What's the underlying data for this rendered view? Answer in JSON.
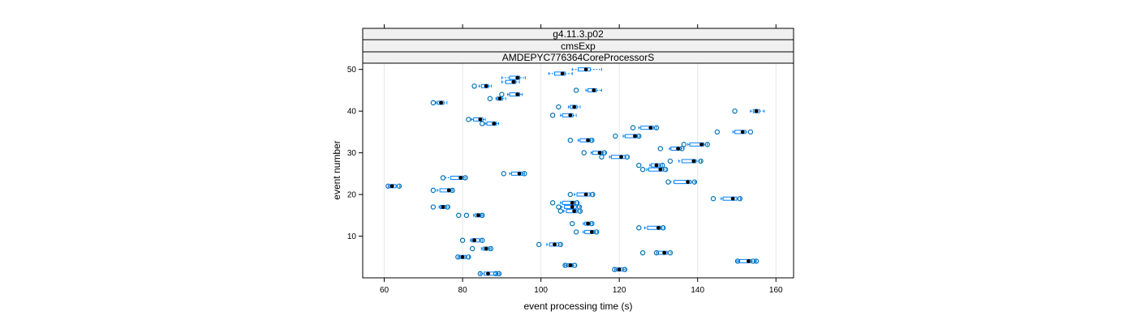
{
  "chart_data": {
    "type": "scatter",
    "subtype": "lattice-box-and-whisker",
    "strips": [
      "g4.11.3.p02",
      "cmsExp",
      "AMDEPYC776364CoreProcessorS"
    ],
    "xlabel": "event processing time (s)",
    "ylabel": "event number",
    "xlim": [
      54.5,
      164.5
    ],
    "ylim": [
      0,
      51.5
    ],
    "xticks": [
      60,
      80,
      100,
      120,
      140,
      160
    ],
    "yticks": [
      10,
      20,
      30,
      40,
      50
    ],
    "grid": true,
    "colors": {
      "box": "#0080ff",
      "point": "#0072b2",
      "median": "#000000",
      "strip": "#f0f0f0",
      "grid": "#e6e6e6"
    },
    "series": [
      {
        "event": 1,
        "median": 86.5,
        "q1": 85.5,
        "q3": 88.5,
        "lo": 84.5,
        "hi": 89.5,
        "outliers": [
          84.5,
          88.5,
          89.3
        ]
      },
      {
        "event": 3,
        "median": 107.5,
        "q1": 106.5,
        "q3": 108.2,
        "lo": 106.0,
        "hi": 109.0,
        "outliers": [
          106.2,
          108.6
        ]
      },
      {
        "event": 2,
        "median": 120.0,
        "q1": 119.2,
        "q3": 121.0,
        "lo": 118.8,
        "hi": 121.6,
        "outliers": [
          118.8,
          121.4
        ]
      },
      {
        "event": 4,
        "median": 153.0,
        "q1": 150.5,
        "q3": 153.8,
        "lo": 150.0,
        "hi": 155.0,
        "outliers": [
          150.2,
          154.2,
          155.0
        ]
      },
      {
        "event": 5,
        "median": 80.0,
        "q1": 79.2,
        "q3": 80.8,
        "lo": 78.8,
        "hi": 81.8,
        "outliers": [
          78.8,
          81.5
        ]
      },
      {
        "event": 6,
        "median": 131.5,
        "q1": 130.0,
        "q3": 132.2,
        "lo": 129.5,
        "hi": 133.5,
        "outliers": [
          126.0,
          129.5,
          133.0
        ]
      },
      {
        "event": 7,
        "median": 86.0,
        "q1": 85.2,
        "q3": 86.8,
        "lo": 84.8,
        "hi": 87.3,
        "outliers": [
          82.5,
          87.2
        ]
      },
      {
        "event": 8,
        "median": 103.5,
        "q1": 102.2,
        "q3": 104.5,
        "lo": 101.5,
        "hi": 105.2,
        "outliers": [
          99.5,
          105.0
        ]
      },
      {
        "event": 9,
        "median": 83.0,
        "q1": 82.3,
        "q3": 84.3,
        "lo": 82.0,
        "hi": 85.0,
        "outliers": [
          80.0,
          85.0
        ]
      },
      {
        "event": 11,
        "median": 113.0,
        "q1": 111.2,
        "q3": 113.8,
        "lo": 110.8,
        "hi": 114.5,
        "outliers": [
          109.0,
          114.2
        ]
      },
      {
        "event": 12,
        "median": 130.0,
        "q1": 127.2,
        "q3": 130.7,
        "lo": 126.5,
        "hi": 131.5,
        "outliers": [
          125.0,
          131.2
        ]
      },
      {
        "event": 13,
        "median": 112.0,
        "q1": 111.2,
        "q3": 112.6,
        "lo": 110.8,
        "hi": 113.2,
        "outliers": [
          108.0,
          113.0
        ]
      },
      {
        "event": 15,
        "median": 84.0,
        "q1": 83.2,
        "q3": 84.7,
        "lo": 82.8,
        "hi": 85.2,
        "outliers": [
          79.0,
          81.0,
          85.0
        ]
      },
      {
        "event": 16,
        "median": 108.5,
        "q1": 106.5,
        "q3": 109.2,
        "lo": 105.8,
        "hi": 110.2,
        "outliers": [
          105.0,
          110.0
        ]
      },
      {
        "event": 17,
        "median": 108.0,
        "q1": 106.0,
        "q3": 109.0,
        "lo": 105.2,
        "hi": 110.0,
        "outliers": [
          104.5,
          109.8
        ]
      },
      {
        "event": 17,
        "median": 75.0,
        "q1": 74.3,
        "q3": 75.8,
        "lo": 74.0,
        "hi": 76.5,
        "outliers": [
          72.5,
          76.2
        ]
      },
      {
        "event": 18,
        "median": 108.0,
        "q1": 105.5,
        "q3": 108.7,
        "lo": 105.0,
        "hi": 109.5,
        "outliers": [
          103.0,
          109.2
        ]
      },
      {
        "event": 19,
        "median": 149.0,
        "q1": 146.5,
        "q3": 150.0,
        "lo": 146.0,
        "hi": 151.0,
        "outliers": [
          144.0,
          150.8
        ]
      },
      {
        "event": 20,
        "median": 111.5,
        "q1": 109.2,
        "q3": 112.5,
        "lo": 108.5,
        "hi": 113.5,
        "outliers": [
          107.5,
          113.2
        ]
      },
      {
        "event": 21,
        "median": 76.5,
        "q1": 74.2,
        "q3": 77.0,
        "lo": 73.5,
        "hi": 77.5,
        "outliers": [
          72.5,
          77.4
        ]
      },
      {
        "event": 22,
        "median": 62.0,
        "q1": 61.5,
        "q3": 63.0,
        "lo": 61.0,
        "hi": 64.0,
        "outliers": [
          61.0,
          63.8
        ]
      },
      {
        "event": 23,
        "median": 137.5,
        "q1": 134.0,
        "q3": 138.3,
        "lo": 133.0,
        "hi": 139.5,
        "outliers": [
          132.5,
          139.2
        ]
      },
      {
        "event": 24,
        "median": 79.5,
        "q1": 77.0,
        "q3": 80.2,
        "lo": 75.5,
        "hi": 80.8,
        "outliers": [
          75.0,
          80.7
        ]
      },
      {
        "event": 25,
        "median": 94.5,
        "q1": 92.5,
        "q3": 95.3,
        "lo": 92.0,
        "hi": 95.8,
        "outliers": [
          90.5,
          95.8
        ]
      },
      {
        "event": 26,
        "median": 130.5,
        "q1": 127.5,
        "q3": 131.2,
        "lo": 127.0,
        "hi": 132.0,
        "outliers": [
          126.0,
          131.8
        ]
      },
      {
        "event": 27,
        "median": 129.5,
        "q1": 128.2,
        "q3": 130.3,
        "lo": 127.8,
        "hi": 131.0,
        "outliers": [
          125.0,
          131.0
        ]
      },
      {
        "event": 28,
        "median": 139.0,
        "q1": 136.0,
        "q3": 139.6,
        "lo": 135.2,
        "hi": 141.0,
        "outliers": [
          133.0,
          140.8
        ]
      },
      {
        "event": 29,
        "median": 120.5,
        "q1": 118.0,
        "q3": 121.5,
        "lo": 117.5,
        "hi": 122.5,
        "outliers": [
          115.5,
          122.0
        ]
      },
      {
        "event": 30,
        "median": 115.0,
        "q1": 113.2,
        "q3": 115.8,
        "lo": 112.8,
        "hi": 116.5,
        "outliers": [
          111.0,
          116.2
        ]
      },
      {
        "event": 31,
        "median": 135.0,
        "q1": 133.2,
        "q3": 135.8,
        "lo": 132.8,
        "hi": 136.5,
        "outliers": [
          130.5,
          136.0
        ]
      },
      {
        "event": 32,
        "median": 141.0,
        "q1": 138.0,
        "q3": 141.6,
        "lo": 137.5,
        "hi": 142.5,
        "outliers": [
          136.5,
          142.5
        ]
      },
      {
        "event": 33,
        "median": 112.0,
        "q1": 110.0,
        "q3": 112.6,
        "lo": 109.5,
        "hi": 113.2,
        "outliers": [
          107.5,
          113.0
        ]
      },
      {
        "event": 34,
        "median": 124.0,
        "q1": 121.5,
        "q3": 124.6,
        "lo": 121.0,
        "hi": 125.2,
        "outliers": [
          119.0,
          125.0
        ]
      },
      {
        "event": 35,
        "median": 151.5,
        "q1": 149.5,
        "q3": 152.3,
        "lo": 149.0,
        "hi": 153.0,
        "outliers": [
          145.0,
          153.5
        ]
      },
      {
        "event": 36,
        "median": 128.0,
        "q1": 125.5,
        "q3": 128.7,
        "lo": 125.0,
        "hi": 129.5,
        "outliers": [
          123.5,
          129.5
        ]
      },
      {
        "event": 37,
        "median": 88.0,
        "q1": 86.2,
        "q3": 88.6,
        "lo": 85.8,
        "hi": 89.2,
        "outliers": [
          85.0
        ]
      },
      {
        "event": 38,
        "median": 84.5,
        "q1": 82.8,
        "q3": 85.2,
        "lo": 82.3,
        "hi": 85.8,
        "outliers": [
          81.5
        ]
      },
      {
        "event": 39,
        "median": 107.5,
        "q1": 105.5,
        "q3": 108.2,
        "lo": 105.0,
        "hi": 109.0,
        "outliers": [
          103.0
        ]
      },
      {
        "event": 40,
        "median": 155.0,
        "q1": 154.2,
        "q3": 155.8,
        "lo": 153.5,
        "hi": 157.0,
        "outliers": [
          149.5
        ]
      },
      {
        "event": 41,
        "median": 108.5,
        "q1": 107.5,
        "q3": 109.2,
        "lo": 107.0,
        "hi": 110.0,
        "outliers": [
          104.5
        ]
      },
      {
        "event": 42,
        "median": 74.5,
        "q1": 73.6,
        "q3": 75.2,
        "lo": 73.2,
        "hi": 76.0,
        "outliers": [
          72.5
        ]
      },
      {
        "event": 43,
        "median": 89.5,
        "q1": 88.8,
        "q3": 90.2,
        "lo": 88.5,
        "hi": 91.0,
        "outliers": [
          87.0
        ]
      },
      {
        "event": 44,
        "median": 94.0,
        "q1": 92.0,
        "q3": 94.6,
        "lo": 91.5,
        "hi": 95.2,
        "outliers": [
          90.0
        ]
      },
      {
        "event": 45,
        "median": 113.5,
        "q1": 112.0,
        "q3": 114.2,
        "lo": 111.5,
        "hi": 115.5,
        "outliers": [
          109.0
        ]
      },
      {
        "event": 46,
        "median": 86.0,
        "q1": 84.8,
        "q3": 86.6,
        "lo": 84.2,
        "hi": 87.3,
        "outliers": [
          83.0
        ]
      },
      {
        "event": 47,
        "median": 93.0,
        "q1": 91.0,
        "q3": 93.6,
        "lo": 90.0,
        "hi": 94.5,
        "outliers": []
      },
      {
        "event": 48,
        "median": 94.0,
        "q1": 92.0,
        "q3": 94.6,
        "lo": 90.0,
        "hi": 96.0,
        "outliers": []
      },
      {
        "event": 49,
        "median": 105.5,
        "q1": 103.5,
        "q3": 106.2,
        "lo": 102.0,
        "hi": 108.0,
        "outliers": []
      },
      {
        "event": 50,
        "median": 111.5,
        "q1": 109.5,
        "q3": 112.6,
        "lo": 108.0,
        "hi": 115.5,
        "outliers": []
      }
    ]
  }
}
